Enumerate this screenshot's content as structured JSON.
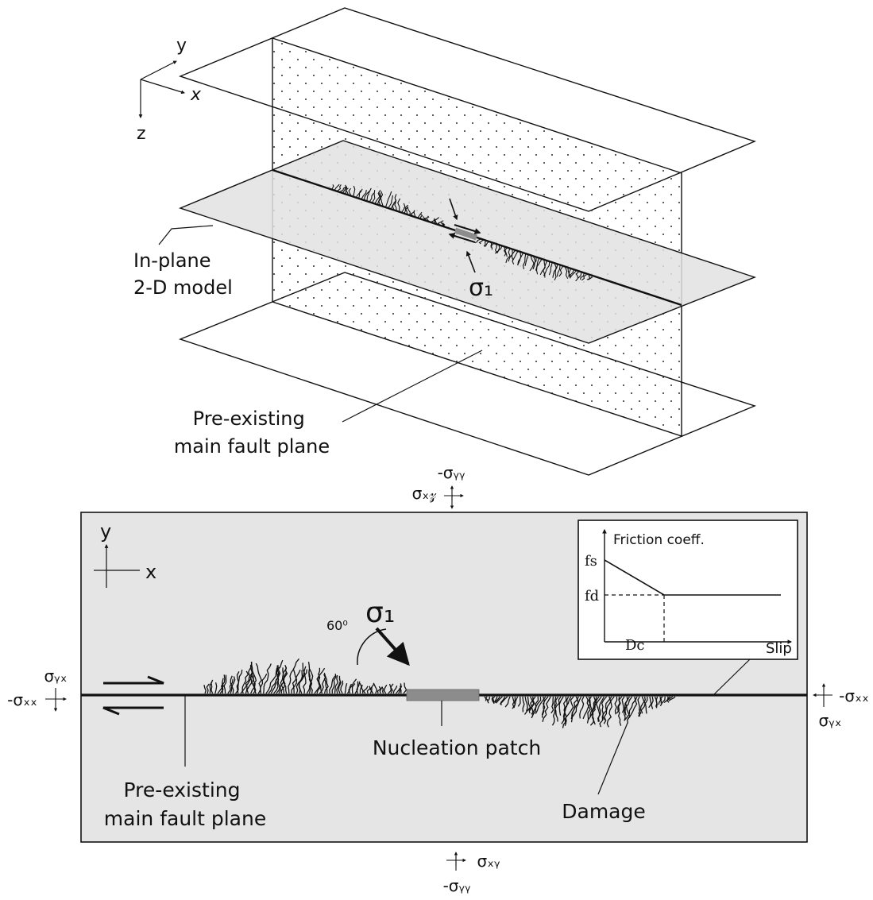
{
  "top_view": {
    "axes": {
      "x": "x",
      "y": "y",
      "z": "z"
    },
    "sigma1": "σ₁",
    "label_inplane": [
      "In-plane",
      "2-D model"
    ],
    "label_fault": [
      "Pre-existing",
      "main fault plane"
    ]
  },
  "bottom_view": {
    "axes": {
      "x": "x",
      "y": "y"
    },
    "sigma1": "σ₁",
    "angle": "60⁰",
    "label_nucleation": "Nucleation patch",
    "label_damage": "Damage",
    "label_fault": [
      "Pre-existing",
      "main fault plane"
    ],
    "stresses": {
      "top_1": "-σᵧᵧ",
      "top_2": "σₓ𝓏",
      "left_1": "σᵧₓ",
      "left_2": "-σₓₓ",
      "right_1": "-σₓₓ",
      "right_2": "σᵧₓ",
      "bottom_1": "σₓᵧ",
      "bottom_2": "-σᵧᵧ"
    }
  },
  "inset": {
    "ylabel": "Friction coeff.",
    "xlabel": "Slip",
    "fs": "fs",
    "fd": "fd",
    "dc": "Dc"
  },
  "colors": {
    "panel_fill": "#e5e5e5",
    "line": "#111111",
    "patch": "#8c8c8c"
  }
}
